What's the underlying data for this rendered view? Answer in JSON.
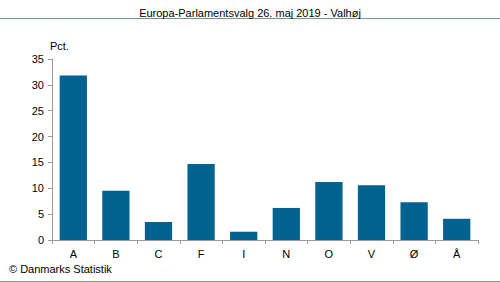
{
  "chart_data": {
    "type": "bar",
    "title": "Europa-Parlamentsvalg 26. maj 2019 - Valhøj",
    "y_label": "Pct.",
    "annotation": "© Danmarks Statistik",
    "categories": [
      "A",
      "B",
      "C",
      "F",
      "I",
      "N",
      "O",
      "V",
      "Ø",
      "Å"
    ],
    "values": [
      31.8,
      9.5,
      3.5,
      14.7,
      1.6,
      6.2,
      11.2,
      10.6,
      7.3,
      4.1
    ],
    "color": "#00628f",
    "ylim": [
      0,
      35
    ],
    "yticks": [
      0,
      5,
      10,
      15,
      20,
      25,
      30,
      35
    ],
    "grid": false
  }
}
